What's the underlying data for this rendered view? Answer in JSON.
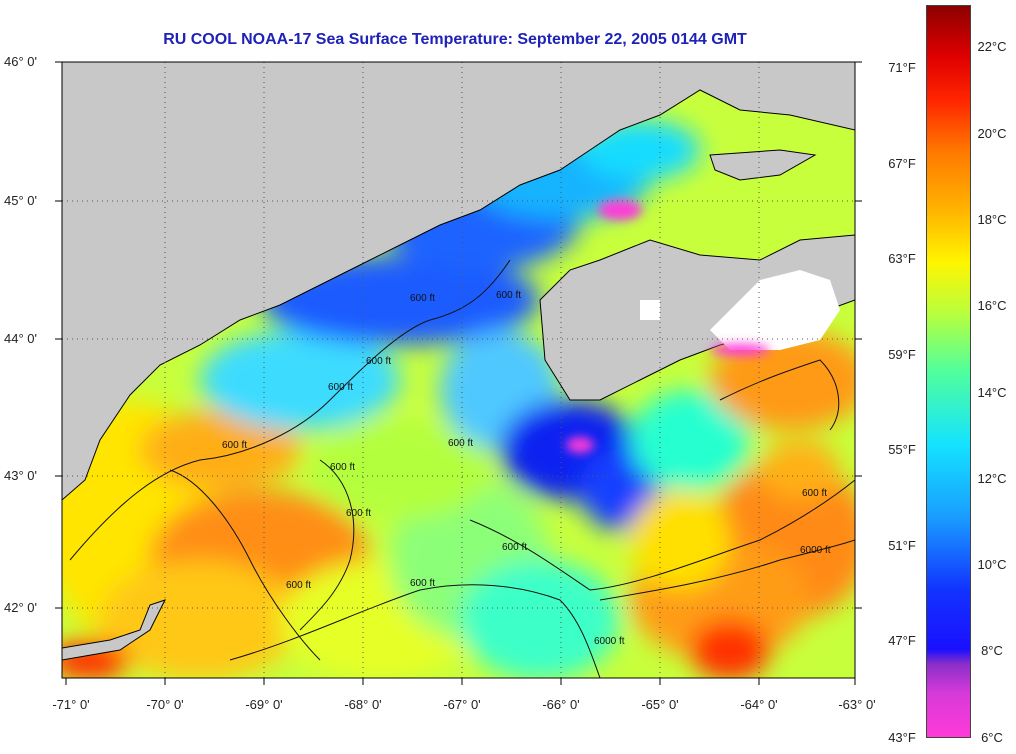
{
  "title": "RU COOL  NOAA-17  Sea Surface Temperature:  September 22, 2005 0144 GMT",
  "lat_labels": [
    "46° 0'",
    "45° 0'",
    "44° 0'",
    "43° 0'",
    "42° 0'"
  ],
  "lon_labels": [
    "-71° 0'",
    "-70° 0'",
    "-69° 0'",
    "-68° 0'",
    "-67° 0'",
    "-66° 0'",
    "-65° 0'",
    "-64° 0'",
    "-63° 0'"
  ],
  "colorbar": {
    "fahrenheit_labels": [
      "71°F",
      "67°F",
      "63°F",
      "59°F",
      "55°F",
      "51°F",
      "47°F",
      "43°F"
    ],
    "celsius_labels": [
      "22°C",
      "20°C",
      "18°C",
      "16°C",
      "14°C",
      "12°C",
      "10°C",
      "8°C",
      "6°C"
    ],
    "colors": [
      "#ff3ad9",
      "#8a2ec8",
      "#1a10ff",
      "#1a9cff",
      "#14e3ff",
      "#50ff9c",
      "#fff500",
      "#ff7a00",
      "#ff2600",
      "#8c0000"
    ]
  },
  "contour_labels": [
    "600 ft",
    "600 ft",
    "600 ft",
    "600 ft",
    "600 ft",
    "600 ft",
    "600 ft",
    "600 ft",
    "600 ft",
    "600 ft",
    "600 ft",
    "600 ft",
    "6000 ft",
    "6000 ft"
  ],
  "land_color": "#c8c8c8",
  "cloud_color": "#ffffff"
}
